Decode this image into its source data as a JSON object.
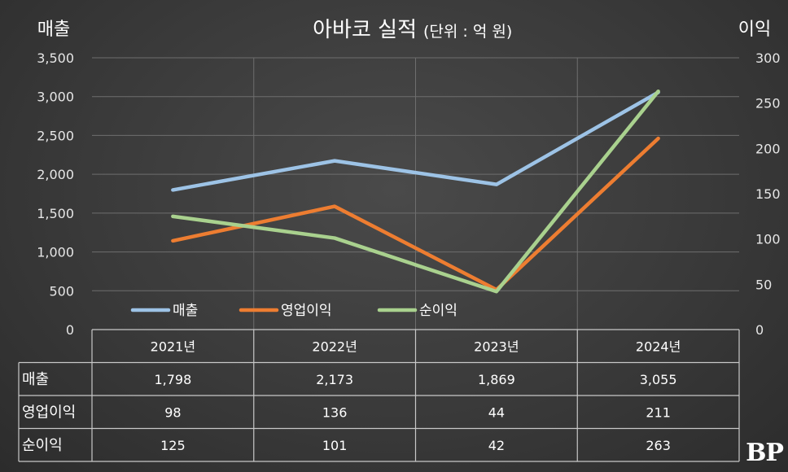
{
  "chart_data": {
    "type": "line",
    "title": "아바코 실적",
    "title_unit": "(단위 : 억 원)",
    "left_axis_label": "매출",
    "right_axis_label": "이익",
    "categories": [
      "2021년",
      "2022년",
      "2023년",
      "2024년"
    ],
    "left_ylim": [
      0,
      3500
    ],
    "left_ticks": [
      0,
      500,
      1000,
      1500,
      2000,
      2500,
      3000,
      3500
    ],
    "left_tick_labels": [
      "0",
      "500",
      "1,000",
      "1,500",
      "2,000",
      "2,500",
      "3,000",
      "3,500"
    ],
    "right_ylim": [
      0,
      300
    ],
    "right_ticks": [
      0,
      50,
      100,
      150,
      200,
      250,
      300
    ],
    "right_tick_labels": [
      "0",
      "50",
      "100",
      "150",
      "200",
      "250",
      "300"
    ],
    "series": [
      {
        "name": "매출",
        "axis": "left",
        "color": "#9dc3e6",
        "values": [
          1798,
          2173,
          1869,
          3055
        ],
        "labels": [
          "1,798",
          "2,173",
          "1,869",
          "3,055"
        ]
      },
      {
        "name": "영업이익",
        "axis": "right",
        "color": "#ed7d31",
        "values": [
          98,
          136,
          44,
          211
        ],
        "labels": [
          "98",
          "136",
          "44",
          "211"
        ]
      },
      {
        "name": "순이익",
        "axis": "right",
        "color": "#a9d18e",
        "values": [
          125,
          101,
          42,
          263
        ],
        "labels": [
          "125",
          "101",
          "42",
          "263"
        ]
      }
    ],
    "legend_position": "bottom-left-inside",
    "grid": true
  },
  "logo_text": "BP"
}
